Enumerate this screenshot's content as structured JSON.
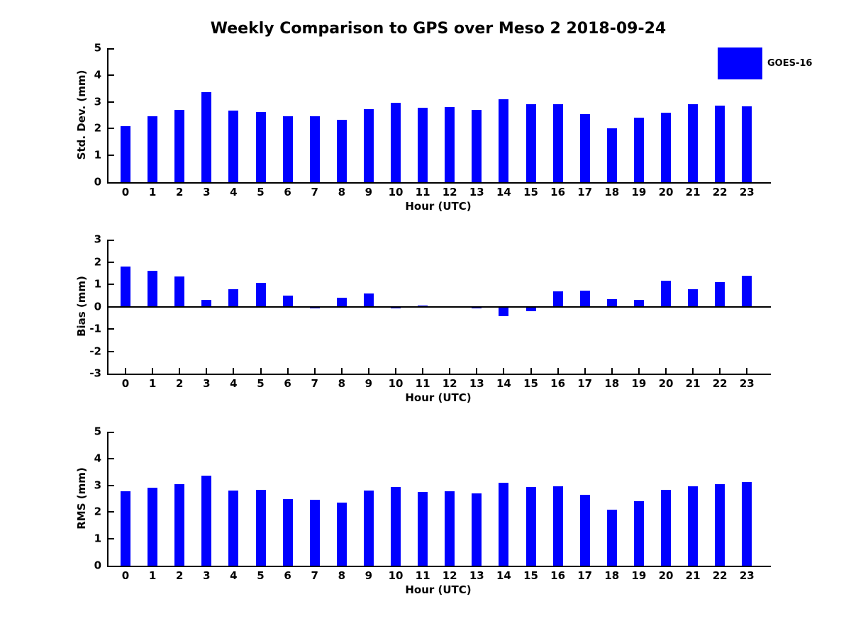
{
  "title": "Weekly Comparison to GPS over Meso 2 2018-09-24",
  "legend": {
    "position": "top-right",
    "items": [
      {
        "label": "GOES-16",
        "color": "#0000ff"
      }
    ]
  },
  "chart_data": [
    {
      "type": "bar",
      "series_name": "GOES-16",
      "ylabel": "Std. Dev. (mm)",
      "xlabel": "Hour (UTC)",
      "ylim": [
        0,
        5
      ],
      "yticks": [
        0,
        1,
        2,
        3,
        4,
        5
      ],
      "grid": false,
      "categories": [
        "0",
        "1",
        "2",
        "3",
        "4",
        "5",
        "6",
        "7",
        "8",
        "9",
        "10",
        "11",
        "12",
        "13",
        "14",
        "15",
        "16",
        "17",
        "18",
        "19",
        "20",
        "21",
        "22",
        "23"
      ],
      "values": [
        2.1,
        2.45,
        2.7,
        3.35,
        2.68,
        2.63,
        2.45,
        2.45,
        2.32,
        2.73,
        2.95,
        2.77,
        2.8,
        2.7,
        3.1,
        2.92,
        2.92,
        2.55,
        2.02,
        2.4,
        2.58,
        2.9,
        2.85,
        2.82
      ]
    },
    {
      "type": "bar",
      "series_name": "GOES-16",
      "ylabel": "Bias (mm)",
      "xlabel": "Hour (UTC)",
      "ylim": [
        -3,
        3
      ],
      "yticks": [
        -3,
        -2,
        -1,
        0,
        1,
        2,
        3
      ],
      "grid": false,
      "zero_line": true,
      "categories": [
        "0",
        "1",
        "2",
        "3",
        "4",
        "5",
        "6",
        "7",
        "8",
        "9",
        "10",
        "11",
        "12",
        "13",
        "14",
        "15",
        "16",
        "17",
        "18",
        "19",
        "20",
        "21",
        "22",
        "23"
      ],
      "values": [
        1.8,
        1.6,
        1.35,
        0.3,
        0.78,
        1.05,
        0.5,
        -0.07,
        0.4,
        0.6,
        -0.07,
        0.06,
        -0.03,
        -0.08,
        -0.43,
        -0.21,
        0.67,
        0.73,
        0.33,
        0.29,
        1.15,
        0.78,
        1.1,
        1.38
      ]
    },
    {
      "type": "bar",
      "series_name": "GOES-16",
      "ylabel": "RMS (mm)",
      "xlabel": "Hour (UTC)",
      "ylim": [
        0,
        5
      ],
      "yticks": [
        0,
        1,
        2,
        3,
        4,
        5
      ],
      "grid": false,
      "categories": [
        "0",
        "1",
        "2",
        "3",
        "4",
        "5",
        "6",
        "7",
        "8",
        "9",
        "10",
        "11",
        "12",
        "13",
        "14",
        "15",
        "16",
        "17",
        "18",
        "19",
        "20",
        "21",
        "22",
        "23"
      ],
      "values": [
        2.78,
        2.9,
        3.03,
        3.35,
        2.8,
        2.82,
        2.5,
        2.47,
        2.36,
        2.8,
        2.93,
        2.75,
        2.77,
        2.7,
        3.1,
        2.93,
        2.97,
        2.65,
        2.08,
        2.41,
        2.83,
        2.97,
        3.03,
        3.13
      ]
    }
  ]
}
